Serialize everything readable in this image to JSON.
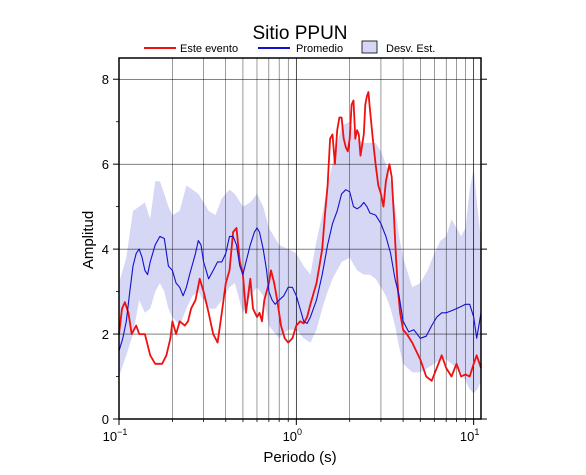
{
  "chart_data": {
    "type": "line",
    "title": "Sitio PPUN",
    "xlabel": "Periodo (s)",
    "ylabel": "Amplitud",
    "x_scale": "log",
    "xlim": [
      0.1,
      11
    ],
    "ylim": [
      0,
      8.5
    ],
    "grid": true,
    "legend_placement": "top",
    "x_ticks": [
      {
        "value": 0.1,
        "base": "10",
        "exp": "−1"
      },
      {
        "value": 1,
        "base": "10",
        "exp": "0"
      },
      {
        "value": 10,
        "base": "10",
        "exp": "1"
      }
    ],
    "y_ticks": [
      0,
      2,
      4,
      6,
      8
    ],
    "legend": [
      {
        "label": "Este evento",
        "kind": "line",
        "color": "#ee1111"
      },
      {
        "label": "Promedio",
        "kind": "line",
        "color": "#1111cc"
      },
      {
        "label": "Desv. Est.",
        "kind": "band",
        "color": "#d6d6f5"
      }
    ],
    "series": [
      {
        "name": "Este evento",
        "color": "#ee1111",
        "points": [
          [
            0.1,
            2.0
          ],
          [
            0.104,
            2.6
          ],
          [
            0.108,
            2.75
          ],
          [
            0.113,
            2.5
          ],
          [
            0.118,
            2.0
          ],
          [
            0.125,
            2.2
          ],
          [
            0.13,
            2.0
          ],
          [
            0.14,
            2.0
          ],
          [
            0.15,
            1.5
          ],
          [
            0.16,
            1.3
          ],
          [
            0.175,
            1.3
          ],
          [
            0.185,
            1.5
          ],
          [
            0.195,
            1.9
          ],
          [
            0.2,
            2.3
          ],
          [
            0.21,
            2.0
          ],
          [
            0.22,
            2.3
          ],
          [
            0.235,
            2.2
          ],
          [
            0.245,
            2.3
          ],
          [
            0.255,
            2.6
          ],
          [
            0.27,
            2.8
          ],
          [
            0.285,
            3.3
          ],
          [
            0.3,
            3.0
          ],
          [
            0.32,
            2.5
          ],
          [
            0.34,
            2.0
          ],
          [
            0.36,
            1.8
          ],
          [
            0.38,
            2.5
          ],
          [
            0.4,
            3.2
          ],
          [
            0.42,
            3.5
          ],
          [
            0.44,
            4.4
          ],
          [
            0.46,
            4.5
          ],
          [
            0.48,
            3.7
          ],
          [
            0.5,
            3.4
          ],
          [
            0.52,
            2.5
          ],
          [
            0.55,
            3.3
          ],
          [
            0.57,
            2.6
          ],
          [
            0.6,
            2.4
          ],
          [
            0.62,
            2.5
          ],
          [
            0.64,
            2.3
          ],
          [
            0.66,
            2.8
          ],
          [
            0.7,
            3.2
          ],
          [
            0.72,
            3.5
          ],
          [
            0.75,
            3.2
          ],
          [
            0.78,
            2.8
          ],
          [
            0.82,
            2.2
          ],
          [
            0.86,
            1.9
          ],
          [
            0.9,
            1.8
          ],
          [
            0.95,
            1.9
          ],
          [
            1.0,
            2.2
          ],
          [
            1.05,
            2.3
          ],
          [
            1.1,
            2.25
          ],
          [
            1.15,
            2.4
          ],
          [
            1.2,
            2.7
          ],
          [
            1.3,
            3.2
          ],
          [
            1.35,
            3.6
          ],
          [
            1.4,
            4.0
          ],
          [
            1.45,
            4.8
          ],
          [
            1.5,
            5.5
          ],
          [
            1.55,
            6.6
          ],
          [
            1.6,
            6.7
          ],
          [
            1.65,
            6.0
          ],
          [
            1.7,
            6.8
          ],
          [
            1.75,
            7.1
          ],
          [
            1.8,
            7.1
          ],
          [
            1.85,
            6.6
          ],
          [
            1.9,
            6.4
          ],
          [
            1.95,
            6.3
          ],
          [
            2.0,
            6.6
          ],
          [
            2.05,
            7.4
          ],
          [
            2.1,
            7.5
          ],
          [
            2.15,
            6.6
          ],
          [
            2.2,
            6.8
          ],
          [
            2.25,
            6.7
          ],
          [
            2.3,
            6.2
          ],
          [
            2.4,
            6.7
          ],
          [
            2.45,
            7.4
          ],
          [
            2.5,
            7.6
          ],
          [
            2.55,
            7.7
          ],
          [
            2.6,
            7.3
          ],
          [
            2.7,
            6.6
          ],
          [
            2.8,
            6.0
          ],
          [
            2.9,
            5.5
          ],
          [
            3.0,
            5.3
          ],
          [
            3.1,
            5.0
          ],
          [
            3.2,
            5.6
          ],
          [
            3.35,
            6.0
          ],
          [
            3.45,
            5.7
          ],
          [
            3.55,
            4.8
          ],
          [
            3.65,
            3.8
          ],
          [
            3.75,
            3.0
          ],
          [
            3.85,
            2.5
          ],
          [
            4.0,
            2.1
          ],
          [
            4.2,
            2.0
          ],
          [
            4.5,
            1.8
          ],
          [
            5.0,
            1.4
          ],
          [
            5.4,
            1.0
          ],
          [
            5.8,
            0.9
          ],
          [
            6.2,
            1.2
          ],
          [
            6.6,
            1.5
          ],
          [
            7.0,
            1.2
          ],
          [
            7.5,
            1.0
          ],
          [
            8.0,
            1.3
          ],
          [
            8.5,
            1.0
          ],
          [
            9.0,
            1.05
          ],
          [
            9.5,
            1.0
          ],
          [
            10.0,
            1.3
          ],
          [
            10.4,
            1.5
          ],
          [
            10.8,
            1.3
          ],
          [
            11.0,
            1.2
          ]
        ]
      },
      {
        "name": "Promedio",
        "color": "#1111cc",
        "points": [
          [
            0.1,
            1.6
          ],
          [
            0.105,
            1.9
          ],
          [
            0.11,
            2.3
          ],
          [
            0.115,
            3.0
          ],
          [
            0.12,
            3.6
          ],
          [
            0.125,
            3.9
          ],
          [
            0.13,
            4.0
          ],
          [
            0.135,
            3.8
          ],
          [
            0.14,
            3.5
          ],
          [
            0.145,
            3.4
          ],
          [
            0.15,
            3.7
          ],
          [
            0.16,
            4.1
          ],
          [
            0.17,
            4.3
          ],
          [
            0.18,
            4.25
          ],
          [
            0.19,
            3.6
          ],
          [
            0.2,
            3.5
          ],
          [
            0.21,
            3.2
          ],
          [
            0.22,
            3.1
          ],
          [
            0.23,
            2.9
          ],
          [
            0.24,
            3.1
          ],
          [
            0.25,
            3.4
          ],
          [
            0.27,
            3.9
          ],
          [
            0.28,
            4.2
          ],
          [
            0.29,
            4.1
          ],
          [
            0.3,
            3.7
          ],
          [
            0.32,
            3.3
          ],
          [
            0.34,
            3.5
          ],
          [
            0.36,
            3.7
          ],
          [
            0.38,
            3.7
          ],
          [
            0.4,
            3.9
          ],
          [
            0.42,
            4.3
          ],
          [
            0.44,
            4.3
          ],
          [
            0.46,
            4.1
          ],
          [
            0.48,
            3.6
          ],
          [
            0.5,
            3.4
          ],
          [
            0.52,
            3.7
          ],
          [
            0.55,
            4.1
          ],
          [
            0.58,
            4.4
          ],
          [
            0.6,
            4.5
          ],
          [
            0.62,
            4.4
          ],
          [
            0.65,
            4.0
          ],
          [
            0.68,
            3.5
          ],
          [
            0.7,
            3.0
          ],
          [
            0.73,
            2.8
          ],
          [
            0.76,
            2.7
          ],
          [
            0.8,
            2.8
          ],
          [
            0.85,
            2.9
          ],
          [
            0.9,
            3.1
          ],
          [
            0.95,
            3.1
          ],
          [
            1.0,
            2.9
          ],
          [
            1.05,
            2.6
          ],
          [
            1.1,
            2.3
          ],
          [
            1.15,
            2.25
          ],
          [
            1.2,
            2.4
          ],
          [
            1.3,
            2.8
          ],
          [
            1.4,
            3.4
          ],
          [
            1.5,
            4.1
          ],
          [
            1.6,
            4.6
          ],
          [
            1.7,
            4.9
          ],
          [
            1.8,
            5.3
          ],
          [
            1.9,
            5.4
          ],
          [
            2.0,
            5.35
          ],
          [
            2.1,
            5.0
          ],
          [
            2.2,
            4.95
          ],
          [
            2.3,
            5.0
          ],
          [
            2.4,
            5.1
          ],
          [
            2.5,
            5.0
          ],
          [
            2.6,
            4.85
          ],
          [
            2.8,
            4.8
          ],
          [
            3.0,
            4.6
          ],
          [
            3.2,
            4.3
          ],
          [
            3.4,
            3.9
          ],
          [
            3.6,
            3.3
          ],
          [
            3.8,
            2.9
          ],
          [
            4.0,
            2.3
          ],
          [
            4.3,
            2.05
          ],
          [
            4.6,
            2.1
          ],
          [
            5.0,
            1.9
          ],
          [
            5.4,
            1.95
          ],
          [
            5.8,
            2.2
          ],
          [
            6.2,
            2.4
          ],
          [
            6.6,
            2.5
          ],
          [
            7.0,
            2.5
          ],
          [
            7.5,
            2.55
          ],
          [
            8.0,
            2.6
          ],
          [
            8.5,
            2.65
          ],
          [
            9.0,
            2.7
          ],
          [
            9.5,
            2.7
          ],
          [
            10.0,
            2.4
          ],
          [
            10.4,
            1.9
          ],
          [
            10.8,
            2.3
          ],
          [
            11.0,
            2.5
          ]
        ]
      }
    ],
    "band": {
      "name": "Desv. Est.",
      "color": "#d6d6f5",
      "upper": [
        [
          0.1,
          3.2
        ],
        [
          0.11,
          3.8
        ],
        [
          0.12,
          4.9
        ],
        [
          0.13,
          5.0
        ],
        [
          0.14,
          5.1
        ],
        [
          0.15,
          4.7
        ],
        [
          0.16,
          5.6
        ],
        [
          0.17,
          5.6
        ],
        [
          0.18,
          5.3
        ],
        [
          0.19,
          5.0
        ],
        [
          0.2,
          4.8
        ],
        [
          0.22,
          4.9
        ],
        [
          0.24,
          5.5
        ],
        [
          0.26,
          5.4
        ],
        [
          0.28,
          5.3
        ],
        [
          0.3,
          5.1
        ],
        [
          0.32,
          4.9
        ],
        [
          0.35,
          4.8
        ],
        [
          0.38,
          5.2
        ],
        [
          0.42,
          5.4
        ],
        [
          0.45,
          5.3
        ],
        [
          0.5,
          5.0
        ],
        [
          0.55,
          5.1
        ],
        [
          0.6,
          5.3
        ],
        [
          0.65,
          5.0
        ],
        [
          0.7,
          4.5
        ],
        [
          0.8,
          4.1
        ],
        [
          0.9,
          4.0
        ],
        [
          1.0,
          3.9
        ],
        [
          1.1,
          3.6
        ],
        [
          1.2,
          3.4
        ],
        [
          1.3,
          4.2
        ],
        [
          1.4,
          4.8
        ],
        [
          1.5,
          5.5
        ],
        [
          1.6,
          6.0
        ],
        [
          1.8,
          6.9
        ],
        [
          2.0,
          7.0
        ],
        [
          2.2,
          6.6
        ],
        [
          2.4,
          6.5
        ],
        [
          2.6,
          6.5
        ],
        [
          2.8,
          6.5
        ],
        [
          3.0,
          6.3
        ],
        [
          3.2,
          6.0
        ],
        [
          3.4,
          5.6
        ],
        [
          3.6,
          5.0
        ],
        [
          3.8,
          4.3
        ],
        [
          4.0,
          3.8
        ],
        [
          4.5,
          3.1
        ],
        [
          5.0,
          3.2
        ],
        [
          5.5,
          3.5
        ],
        [
          6.0,
          3.9
        ],
        [
          6.5,
          4.2
        ],
        [
          7.0,
          4.3
        ],
        [
          7.5,
          4.7
        ],
        [
          8.0,
          4.5
        ],
        [
          8.5,
          4.3
        ],
        [
          9.0,
          4.5
        ],
        [
          9.5,
          5.4
        ],
        [
          10.0,
          5.9
        ],
        [
          10.5,
          5.0
        ],
        [
          11.0,
          4.2
        ]
      ],
      "lower": [
        [
          0.1,
          1.0
        ],
        [
          0.11,
          1.5
        ],
        [
          0.12,
          2.0
        ],
        [
          0.13,
          2.8
        ],
        [
          0.14,
          2.5
        ],
        [
          0.15,
          2.6
        ],
        [
          0.16,
          3.0
        ],
        [
          0.17,
          3.2
        ],
        [
          0.18,
          3.0
        ],
        [
          0.19,
          2.6
        ],
        [
          0.2,
          2.4
        ],
        [
          0.22,
          2.2
        ],
        [
          0.24,
          2.6
        ],
        [
          0.26,
          2.9
        ],
        [
          0.28,
          3.0
        ],
        [
          0.3,
          2.8
        ],
        [
          0.32,
          2.6
        ],
        [
          0.35,
          2.6
        ],
        [
          0.38,
          2.8
        ],
        [
          0.42,
          3.1
        ],
        [
          0.45,
          3.2
        ],
        [
          0.5,
          2.5
        ],
        [
          0.55,
          2.9
        ],
        [
          0.6,
          3.1
        ],
        [
          0.65,
          2.9
        ],
        [
          0.7,
          2.2
        ],
        [
          0.8,
          1.9
        ],
        [
          0.9,
          2.1
        ],
        [
          1.0,
          2.1
        ],
        [
          1.1,
          1.9
        ],
        [
          1.2,
          1.8
        ],
        [
          1.3,
          2.1
        ],
        [
          1.4,
          2.6
        ],
        [
          1.5,
          3.0
        ],
        [
          1.6,
          3.3
        ],
        [
          1.8,
          3.7
        ],
        [
          2.0,
          3.8
        ],
        [
          2.2,
          3.5
        ],
        [
          2.4,
          3.4
        ],
        [
          2.6,
          3.4
        ],
        [
          2.8,
          3.3
        ],
        [
          3.0,
          3.1
        ],
        [
          3.2,
          2.9
        ],
        [
          3.4,
          2.6
        ],
        [
          3.6,
          2.2
        ],
        [
          3.8,
          1.7
        ],
        [
          4.0,
          1.3
        ],
        [
          4.5,
          1.1
        ],
        [
          5.0,
          1.1
        ],
        [
          5.5,
          1.2
        ],
        [
          6.0,
          1.3
        ],
        [
          6.5,
          1.4
        ],
        [
          7.0,
          1.4
        ],
        [
          7.5,
          1.3
        ],
        [
          8.0,
          1.2
        ],
        [
          8.5,
          1.1
        ],
        [
          9.0,
          0.9
        ],
        [
          9.5,
          0.7
        ],
        [
          10.0,
          0.6
        ],
        [
          10.5,
          0.7
        ],
        [
          11.0,
          0.9
        ]
      ]
    }
  }
}
